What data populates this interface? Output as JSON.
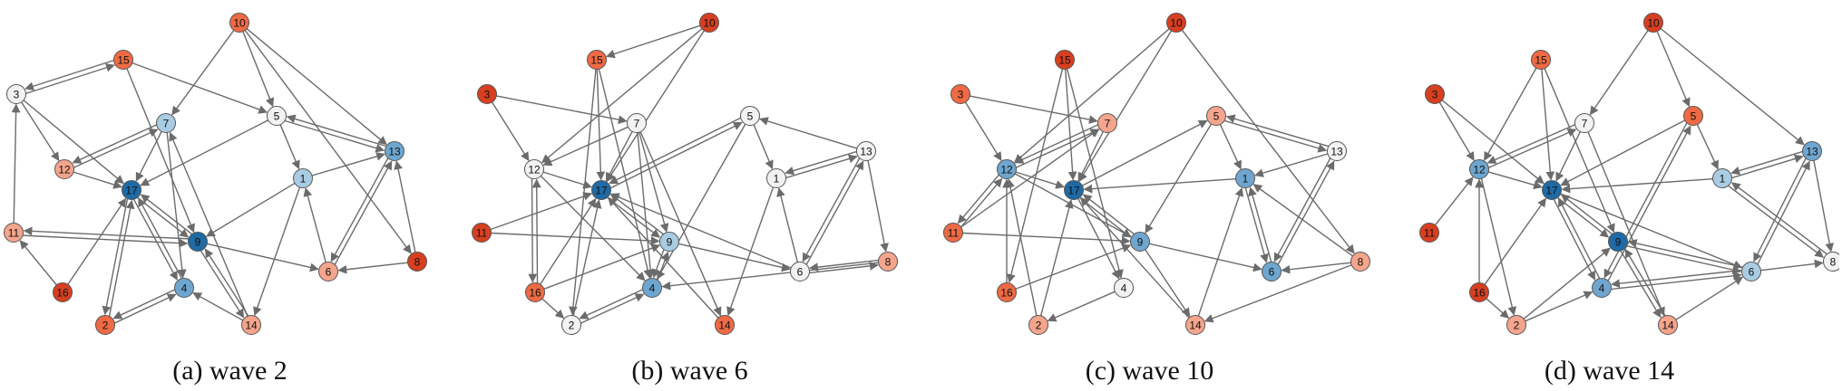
{
  "colors": {
    "red_dark": "#d73f20",
    "red": "#ef6a44",
    "salmon": "#f4a58c",
    "white": "#f2f2f2",
    "lightblue": "#a9cce3",
    "blue": "#6fa6cf",
    "darkblue": "#1f6aa5",
    "edge": "#6b6b6b"
  },
  "panels": [
    {
      "caption": "(a)  wave 2",
      "nodes": [
        {
          "id": "10",
          "color": "red"
        },
        {
          "id": "15",
          "color": "red"
        },
        {
          "id": "3",
          "color": "white"
        },
        {
          "id": "5",
          "color": "white"
        },
        {
          "id": "7",
          "color": "lightblue"
        },
        {
          "id": "13",
          "color": "blue"
        },
        {
          "id": "12",
          "color": "salmon"
        },
        {
          "id": "1",
          "color": "lightblue"
        },
        {
          "id": "17",
          "color": "darkblue"
        },
        {
          "id": "11",
          "color": "salmon"
        },
        {
          "id": "9",
          "color": "darkblue"
        },
        {
          "id": "8",
          "color": "red_dark"
        },
        {
          "id": "6",
          "color": "salmon"
        },
        {
          "id": "16",
          "color": "red_dark"
        },
        {
          "id": "4",
          "color": "blue"
        },
        {
          "id": "2",
          "color": "red"
        },
        {
          "id": "14",
          "color": "salmon"
        }
      ],
      "edges": [
        [
          "10",
          "7"
        ],
        [
          "10",
          "5"
        ],
        [
          "10",
          "13"
        ],
        [
          "10",
          "8"
        ],
        [
          "15",
          "3"
        ],
        [
          "3",
          "15"
        ],
        [
          "15",
          "5"
        ],
        [
          "15",
          "9"
        ],
        [
          "3",
          "12"
        ],
        [
          "3",
          "17"
        ],
        [
          "12",
          "7"
        ],
        [
          "7",
          "12"
        ],
        [
          "5",
          "13"
        ],
        [
          "13",
          "5"
        ],
        [
          "5",
          "1"
        ],
        [
          "5",
          "17"
        ],
        [
          "13",
          "6"
        ],
        [
          "6",
          "13"
        ],
        [
          "1",
          "13"
        ],
        [
          "1",
          "14"
        ],
        [
          "1",
          "9"
        ],
        [
          "7",
          "17"
        ],
        [
          "17",
          "9"
        ],
        [
          "9",
          "17"
        ],
        [
          "11",
          "3"
        ],
        [
          "11",
          "9"
        ],
        [
          "9",
          "11"
        ],
        [
          "16",
          "11"
        ],
        [
          "16",
          "17"
        ],
        [
          "2",
          "17"
        ],
        [
          "17",
          "2"
        ],
        [
          "4",
          "2"
        ],
        [
          "2",
          "4"
        ],
        [
          "4",
          "17"
        ],
        [
          "17",
          "4"
        ],
        [
          "14",
          "4"
        ],
        [
          "14",
          "9"
        ],
        [
          "9",
          "14"
        ],
        [
          "14",
          "7"
        ],
        [
          "7",
          "4"
        ],
        [
          "8",
          "6"
        ],
        [
          "8",
          "13"
        ],
        [
          "6",
          "1"
        ],
        [
          "12",
          "17"
        ],
        [
          "9",
          "6"
        ]
      ]
    },
    {
      "caption": "(b)  wave 6",
      "nodes": [
        {
          "id": "10",
          "color": "red_dark"
        },
        {
          "id": "15",
          "color": "red"
        },
        {
          "id": "3",
          "color": "red_dark"
        },
        {
          "id": "7",
          "color": "white"
        },
        {
          "id": "5",
          "color": "white"
        },
        {
          "id": "13",
          "color": "white"
        },
        {
          "id": "12",
          "color": "white"
        },
        {
          "id": "1",
          "color": "white"
        },
        {
          "id": "17",
          "color": "darkblue"
        },
        {
          "id": "11",
          "color": "red_dark"
        },
        {
          "id": "9",
          "color": "lightblue"
        },
        {
          "id": "8",
          "color": "salmon"
        },
        {
          "id": "6",
          "color": "white"
        },
        {
          "id": "16",
          "color": "red"
        },
        {
          "id": "4",
          "color": "blue"
        },
        {
          "id": "2",
          "color": "white"
        },
        {
          "id": "14",
          "color": "red"
        }
      ],
      "edges": [
        [
          "10",
          "15"
        ],
        [
          "10",
          "12"
        ],
        [
          "10",
          "17"
        ],
        [
          "15",
          "17"
        ],
        [
          "15",
          "4"
        ],
        [
          "15",
          "2"
        ],
        [
          "3",
          "12"
        ],
        [
          "3",
          "7"
        ],
        [
          "7",
          "12"
        ],
        [
          "7",
          "17"
        ],
        [
          "7",
          "4"
        ],
        [
          "7",
          "9"
        ],
        [
          "7",
          "14"
        ],
        [
          "5",
          "17"
        ],
        [
          "17",
          "5"
        ],
        [
          "5",
          "1"
        ],
        [
          "5",
          "4"
        ],
        [
          "13",
          "1"
        ],
        [
          "1",
          "13"
        ],
        [
          "13",
          "5"
        ],
        [
          "13",
          "8"
        ],
        [
          "13",
          "6"
        ],
        [
          "6",
          "13"
        ],
        [
          "1",
          "14"
        ],
        [
          "6",
          "1"
        ],
        [
          "12",
          "17"
        ],
        [
          "12",
          "4"
        ],
        [
          "12",
          "16"
        ],
        [
          "16",
          "12"
        ],
        [
          "11",
          "9"
        ],
        [
          "11",
          "17"
        ],
        [
          "17",
          "9"
        ],
        [
          "9",
          "17"
        ],
        [
          "9",
          "4"
        ],
        [
          "4",
          "9"
        ],
        [
          "16",
          "17"
        ],
        [
          "16",
          "9"
        ],
        [
          "16",
          "2"
        ],
        [
          "2",
          "4"
        ],
        [
          "4",
          "2"
        ],
        [
          "2",
          "17"
        ],
        [
          "14",
          "17"
        ],
        [
          "8",
          "6"
        ],
        [
          "6",
          "8"
        ],
        [
          "8",
          "4"
        ],
        [
          "6",
          "17"
        ],
        [
          "9",
          "6"
        ]
      ]
    },
    {
      "caption": "(c)  wave 10",
      "nodes": [
        {
          "id": "10",
          "color": "red_dark"
        },
        {
          "id": "15",
          "color": "red_dark"
        },
        {
          "id": "3",
          "color": "red"
        },
        {
          "id": "7",
          "color": "salmon"
        },
        {
          "id": "5",
          "color": "salmon"
        },
        {
          "id": "13",
          "color": "white"
        },
        {
          "id": "12",
          "color": "blue"
        },
        {
          "id": "1",
          "color": "blue"
        },
        {
          "id": "17",
          "color": "darkblue"
        },
        {
          "id": "11",
          "color": "red"
        },
        {
          "id": "9",
          "color": "blue"
        },
        {
          "id": "8",
          "color": "salmon"
        },
        {
          "id": "6",
          "color": "blue"
        },
        {
          "id": "16",
          "color": "red"
        },
        {
          "id": "4",
          "color": "white"
        },
        {
          "id": "2",
          "color": "salmon"
        },
        {
          "id": "14",
          "color": "salmon"
        }
      ],
      "edges": [
        [
          "10",
          "12"
        ],
        [
          "10",
          "17"
        ],
        [
          "10",
          "8"
        ],
        [
          "15",
          "17"
        ],
        [
          "15",
          "4"
        ],
        [
          "15",
          "16"
        ],
        [
          "3",
          "12"
        ],
        [
          "3",
          "7"
        ],
        [
          "7",
          "12"
        ],
        [
          "12",
          "7"
        ],
        [
          "7",
          "17"
        ],
        [
          "5",
          "13"
        ],
        [
          "13",
          "5"
        ],
        [
          "5",
          "1"
        ],
        [
          "5",
          "9"
        ],
        [
          "13",
          "1"
        ],
        [
          "13",
          "6"
        ],
        [
          "6",
          "13"
        ],
        [
          "1",
          "6"
        ],
        [
          "6",
          "1"
        ],
        [
          "1",
          "17"
        ],
        [
          "14",
          "1"
        ],
        [
          "8",
          "1"
        ],
        [
          "8",
          "6"
        ],
        [
          "8",
          "14"
        ],
        [
          "12",
          "17"
        ],
        [
          "12",
          "9"
        ],
        [
          "11",
          "12"
        ],
        [
          "12",
          "11"
        ],
        [
          "11",
          "9"
        ],
        [
          "11",
          "7"
        ],
        [
          "16",
          "12"
        ],
        [
          "16",
          "9"
        ],
        [
          "17",
          "9"
        ],
        [
          "9",
          "17"
        ],
        [
          "17",
          "4"
        ],
        [
          "4",
          "2"
        ],
        [
          "2",
          "17"
        ],
        [
          "2",
          "12"
        ],
        [
          "9",
          "14"
        ],
        [
          "14",
          "17"
        ],
        [
          "9",
          "6"
        ],
        [
          "17",
          "5"
        ]
      ]
    },
    {
      "caption": "(d)  wave 14",
      "nodes": [
        {
          "id": "10",
          "color": "red_dark"
        },
        {
          "id": "15",
          "color": "red"
        },
        {
          "id": "3",
          "color": "red_dark"
        },
        {
          "id": "7",
          "color": "white"
        },
        {
          "id": "5",
          "color": "red"
        },
        {
          "id": "13",
          "color": "blue"
        },
        {
          "id": "12",
          "color": "blue"
        },
        {
          "id": "1",
          "color": "lightblue"
        },
        {
          "id": "17",
          "color": "darkblue"
        },
        {
          "id": "11",
          "color": "red_dark"
        },
        {
          "id": "9",
          "color": "darkblue"
        },
        {
          "id": "8",
          "color": "white"
        },
        {
          "id": "6",
          "color": "lightblue"
        },
        {
          "id": "16",
          "color": "red_dark"
        },
        {
          "id": "4",
          "color": "blue"
        },
        {
          "id": "2",
          "color": "salmon"
        },
        {
          "id": "14",
          "color": "salmon"
        }
      ],
      "edges": [
        [
          "10",
          "7"
        ],
        [
          "10",
          "5"
        ],
        [
          "10",
          "13"
        ],
        [
          "15",
          "12"
        ],
        [
          "15",
          "17"
        ],
        [
          "15",
          "9"
        ],
        [
          "3",
          "12"
        ],
        [
          "3",
          "17"
        ],
        [
          "7",
          "12"
        ],
        [
          "12",
          "7"
        ],
        [
          "7",
          "17"
        ],
        [
          "7",
          "14"
        ],
        [
          "5",
          "1"
        ],
        [
          "5",
          "17"
        ],
        [
          "5",
          "4"
        ],
        [
          "4",
          "5"
        ],
        [
          "13",
          "1"
        ],
        [
          "1",
          "13"
        ],
        [
          "13",
          "6"
        ],
        [
          "6",
          "13"
        ],
        [
          "13",
          "8"
        ],
        [
          "1",
          "8"
        ],
        [
          "8",
          "1"
        ],
        [
          "1",
          "17"
        ],
        [
          "12",
          "17"
        ],
        [
          "12",
          "2"
        ],
        [
          "11",
          "12"
        ],
        [
          "16",
          "17"
        ],
        [
          "16",
          "12"
        ],
        [
          "16",
          "2"
        ],
        [
          "2",
          "9"
        ],
        [
          "2",
          "4"
        ],
        [
          "17",
          "9"
        ],
        [
          "9",
          "17"
        ],
        [
          "17",
          "4"
        ],
        [
          "4",
          "17"
        ],
        [
          "9",
          "6"
        ],
        [
          "6",
          "9"
        ],
        [
          "6",
          "4"
        ],
        [
          "4",
          "6"
        ],
        [
          "14",
          "6"
        ],
        [
          "14",
          "9"
        ],
        [
          "9",
          "14"
        ],
        [
          "6",
          "8"
        ],
        [
          "17",
          "6"
        ]
      ]
    }
  ]
}
